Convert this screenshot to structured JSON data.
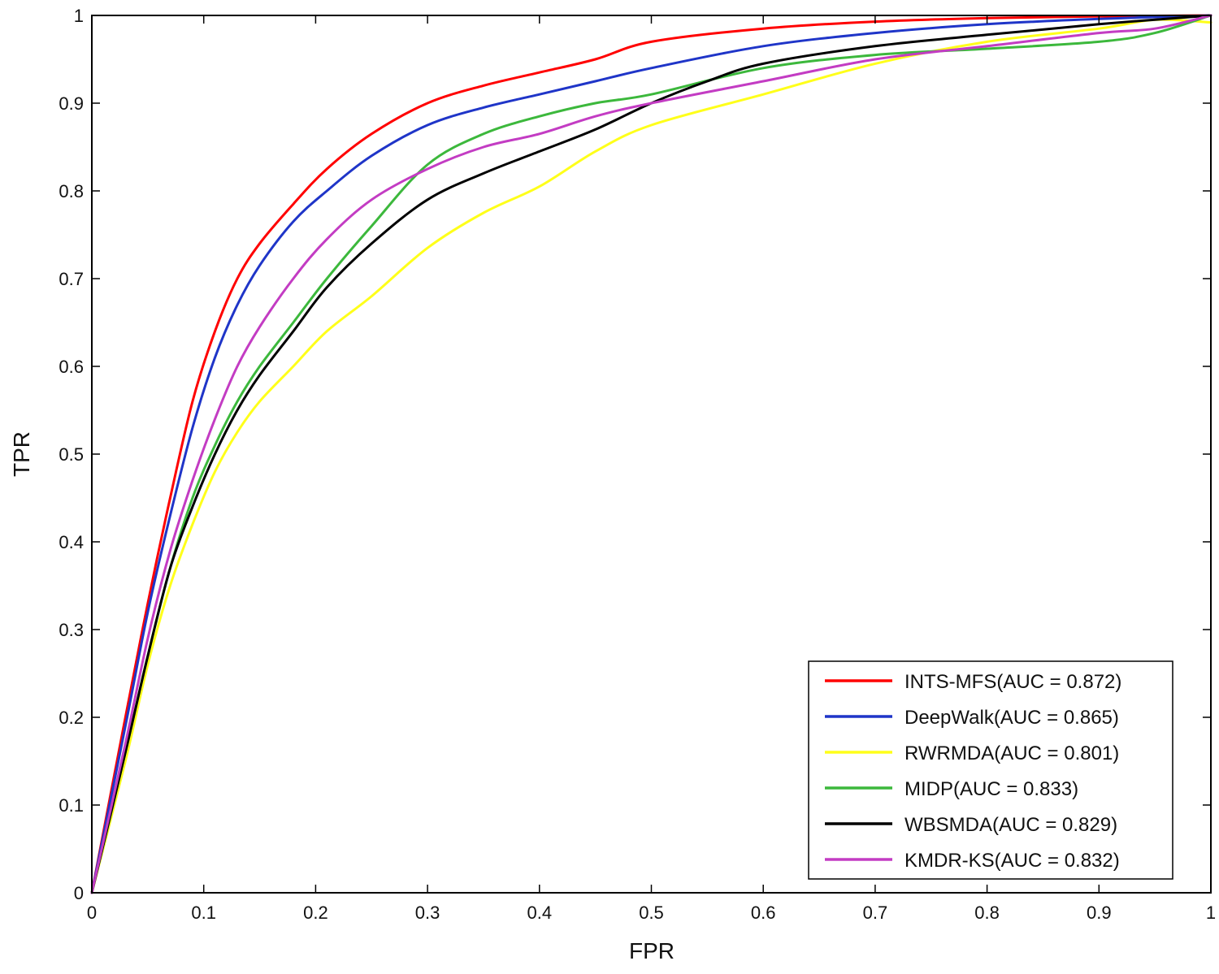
{
  "chart_data": {
    "type": "line",
    "title": "",
    "xlabel": "FPR",
    "ylabel": "TPR",
    "xlim": [
      0,
      1
    ],
    "ylim": [
      0,
      1
    ],
    "xticks": [
      "0",
      "0.1",
      "0.2",
      "0.3",
      "0.4",
      "0.5",
      "0.6",
      "0.7",
      "0.8",
      "0.9",
      "1"
    ],
    "yticks": [
      "0",
      "0.1",
      "0.2",
      "0.3",
      "0.4",
      "0.5",
      "0.6",
      "0.7",
      "0.8",
      "0.9",
      "1"
    ],
    "grid": false,
    "legend_position": "bottom-right",
    "series": [
      {
        "name": "INTS-MFS(AUC = 0.872)",
        "color": "#ff0000",
        "x": [
          0,
          0.03,
          0.05,
          0.07,
          0.09,
          0.11,
          0.13,
          0.15,
          0.18,
          0.21,
          0.25,
          0.3,
          0.35,
          0.4,
          0.45,
          0.5,
          0.6,
          0.7,
          0.8,
          0.9,
          1.0
        ],
        "y": [
          0,
          0.2,
          0.33,
          0.45,
          0.56,
          0.64,
          0.7,
          0.74,
          0.785,
          0.825,
          0.865,
          0.9,
          0.92,
          0.935,
          0.95,
          0.97,
          0.985,
          0.993,
          0.997,
          0.999,
          1.0
        ]
      },
      {
        "name": "DeepWalk(AUC = 0.865)",
        "color": "#1f35c8",
        "x": [
          0,
          0.03,
          0.05,
          0.07,
          0.09,
          0.11,
          0.13,
          0.15,
          0.18,
          0.21,
          0.25,
          0.3,
          0.35,
          0.4,
          0.45,
          0.5,
          0.6,
          0.7,
          0.8,
          0.9,
          1.0
        ],
        "y": [
          0,
          0.19,
          0.32,
          0.43,
          0.53,
          0.61,
          0.67,
          0.715,
          0.765,
          0.8,
          0.84,
          0.875,
          0.895,
          0.91,
          0.925,
          0.94,
          0.965,
          0.98,
          0.99,
          0.996,
          1.0
        ]
      },
      {
        "name": "RWRMDA(AUC = 0.801)",
        "color": "#ffff1a",
        "x": [
          0,
          0.03,
          0.05,
          0.07,
          0.09,
          0.11,
          0.13,
          0.15,
          0.18,
          0.21,
          0.25,
          0.3,
          0.35,
          0.4,
          0.45,
          0.5,
          0.6,
          0.7,
          0.8,
          0.9,
          0.95,
          1.0
        ],
        "y": [
          0,
          0.15,
          0.26,
          0.35,
          0.42,
          0.48,
          0.525,
          0.56,
          0.6,
          0.64,
          0.68,
          0.735,
          0.775,
          0.805,
          0.845,
          0.875,
          0.91,
          0.945,
          0.97,
          0.985,
          0.995,
          0.992
        ]
      },
      {
        "name": "MIDP(AUC = 0.833)",
        "color": "#3cb83c",
        "x": [
          0,
          0.03,
          0.05,
          0.07,
          0.09,
          0.11,
          0.13,
          0.15,
          0.18,
          0.21,
          0.25,
          0.3,
          0.35,
          0.4,
          0.45,
          0.5,
          0.6,
          0.7,
          0.8,
          0.9,
          0.95,
          1.0
        ],
        "y": [
          0,
          0.16,
          0.27,
          0.37,
          0.45,
          0.51,
          0.56,
          0.6,
          0.65,
          0.7,
          0.76,
          0.83,
          0.865,
          0.885,
          0.9,
          0.91,
          0.94,
          0.955,
          0.962,
          0.97,
          0.98,
          1.0
        ]
      },
      {
        "name": "WBSMDA(AUC = 0.829)",
        "color": "#000000",
        "x": [
          0,
          0.03,
          0.05,
          0.07,
          0.09,
          0.11,
          0.13,
          0.15,
          0.18,
          0.21,
          0.25,
          0.3,
          0.35,
          0.4,
          0.45,
          0.5,
          0.55,
          0.6,
          0.7,
          0.8,
          0.9,
          1.0
        ],
        "y": [
          0,
          0.16,
          0.27,
          0.37,
          0.44,
          0.5,
          0.55,
          0.59,
          0.64,
          0.69,
          0.74,
          0.79,
          0.82,
          0.845,
          0.87,
          0.9,
          0.925,
          0.945,
          0.965,
          0.978,
          0.99,
          1.0
        ]
      },
      {
        "name": "KMDR-KS(AUC = 0.832)",
        "color": "#c33cc3",
        "x": [
          0,
          0.03,
          0.05,
          0.07,
          0.09,
          0.11,
          0.13,
          0.15,
          0.18,
          0.21,
          0.25,
          0.3,
          0.35,
          0.4,
          0.45,
          0.5,
          0.6,
          0.7,
          0.8,
          0.9,
          0.95,
          1.0
        ],
        "y": [
          0,
          0.17,
          0.29,
          0.39,
          0.47,
          0.54,
          0.6,
          0.645,
          0.7,
          0.745,
          0.79,
          0.825,
          0.85,
          0.865,
          0.885,
          0.9,
          0.925,
          0.95,
          0.965,
          0.98,
          0.985,
          1.0
        ]
      }
    ]
  }
}
